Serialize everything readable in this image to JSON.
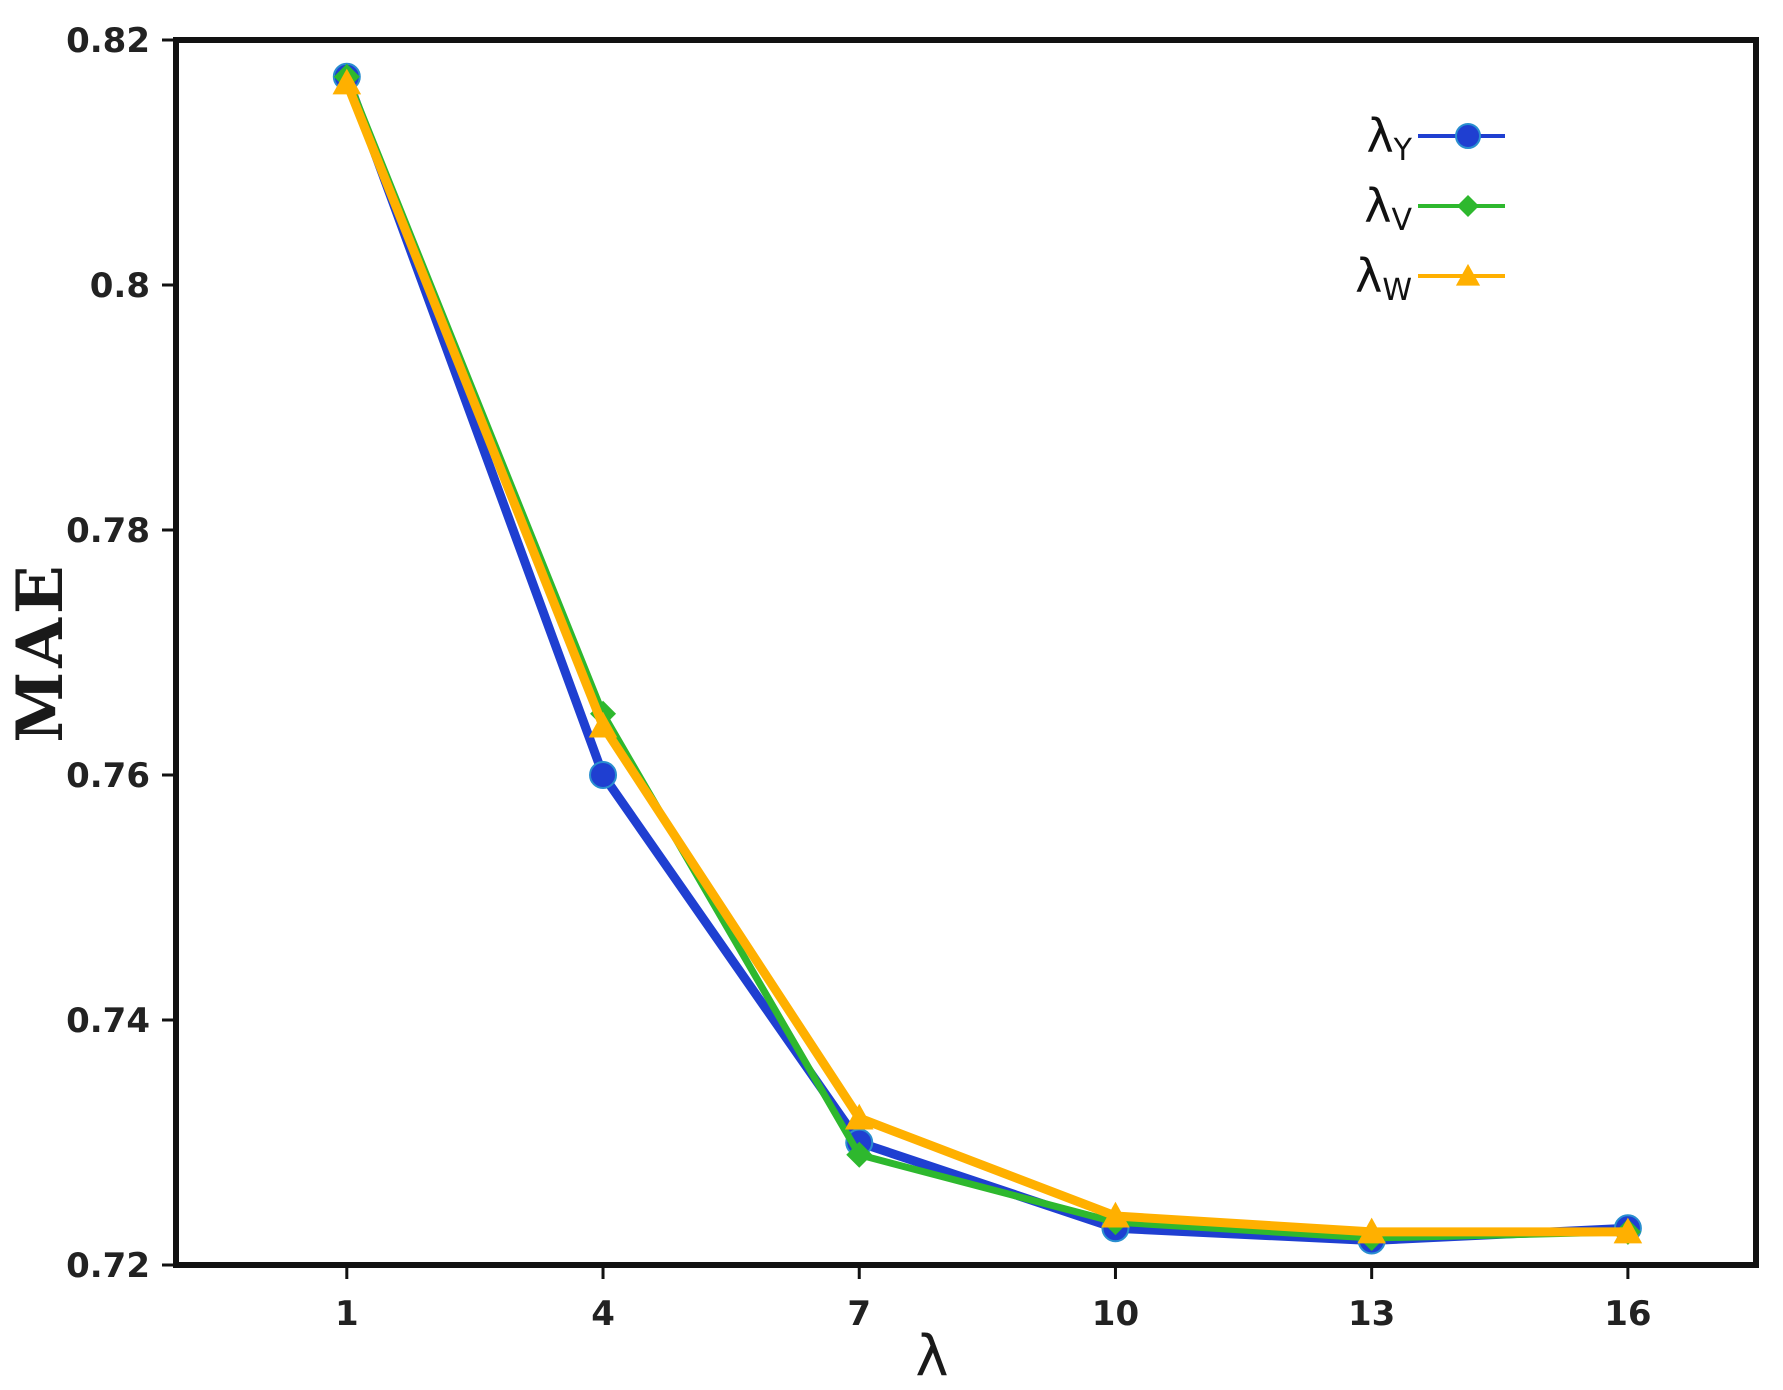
{
  "chart_data": {
    "type": "line",
    "x": [
      1,
      4,
      7,
      10,
      13,
      16
    ],
    "xticks": [
      "1",
      "4",
      "7",
      "10",
      "13",
      "16"
    ],
    "yticks": [
      "0.72",
      "0.74",
      "0.76",
      "0.78",
      "0.8",
      "0.82"
    ],
    "ytick_values": [
      0.72,
      0.74,
      0.76,
      0.78,
      0.8,
      0.82
    ],
    "xlim": [
      -1,
      17.5
    ],
    "ylim": [
      0.72,
      0.82
    ],
    "xlabel": "λ",
    "ylabel": "MAE",
    "title": "",
    "grid": false,
    "legend_position": "top-right",
    "series": [
      {
        "name": "λY",
        "legend_main": "λ",
        "legend_sub": "Y",
        "marker": "circle",
        "color": "#1f3fd1",
        "values": [
          0.817,
          0.76,
          0.73,
          0.723,
          0.722,
          0.723
        ]
      },
      {
        "name": "λV",
        "legend_main": "λ",
        "legend_sub": "V",
        "marker": "diamond",
        "color": "#2eb82e",
        "values": [
          0.817,
          0.765,
          0.729,
          0.7235,
          0.7222,
          0.7227
        ]
      },
      {
        "name": "λW",
        "legend_main": "λ",
        "legend_sub": "W",
        "marker": "triangle",
        "color": "#ffb000",
        "values": [
          0.8165,
          0.764,
          0.732,
          0.724,
          0.7227,
          0.7227
        ]
      }
    ]
  }
}
